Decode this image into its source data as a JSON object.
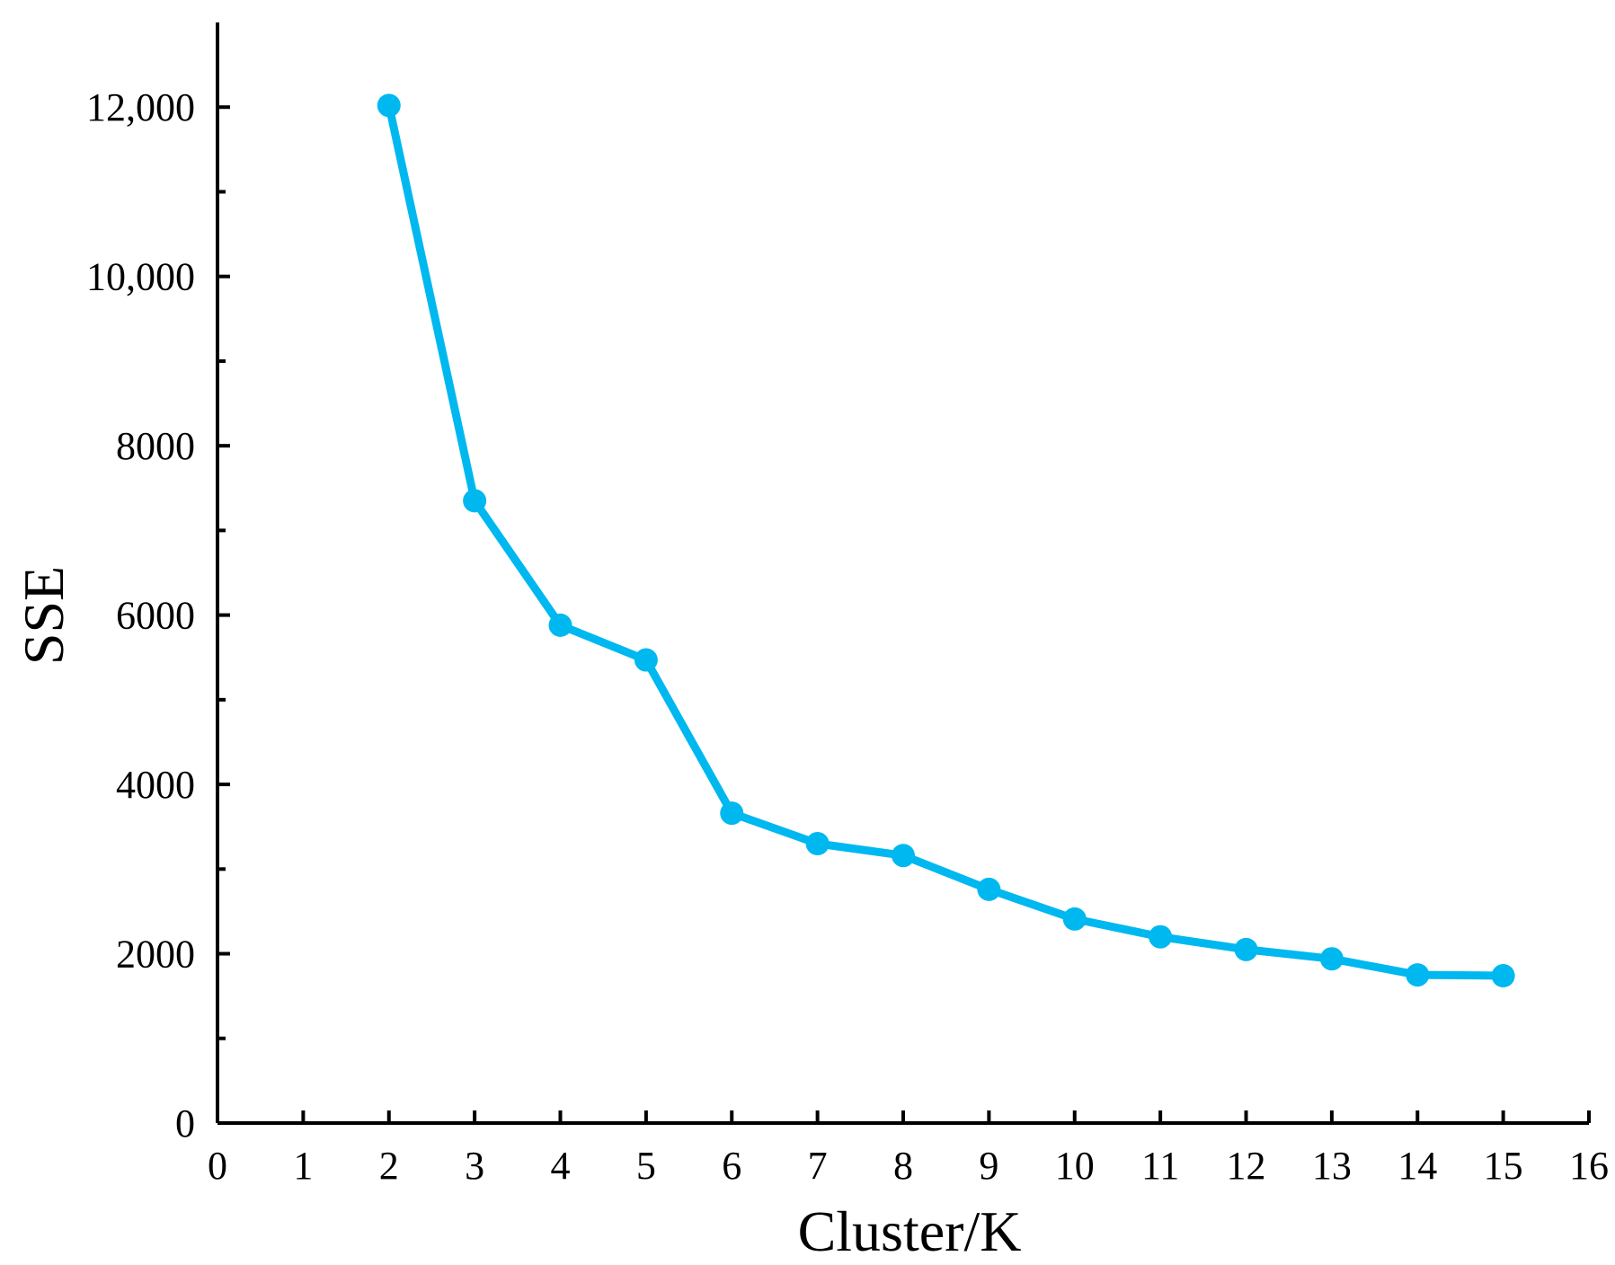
{
  "chart_data": {
    "type": "line",
    "title": "",
    "xlabel": "Cluster/K",
    "ylabel": "SSE",
    "xlim": [
      0,
      16
    ],
    "ylim": [
      0,
      13000
    ],
    "x_ticks": [
      0,
      1,
      2,
      3,
      4,
      5,
      6,
      7,
      8,
      9,
      10,
      11,
      12,
      13,
      14,
      15,
      16
    ],
    "x_tick_labels": [
      "0",
      "1",
      "2",
      "3",
      "4",
      "5",
      "6",
      "7",
      "8",
      "9",
      "10",
      "11",
      "12",
      "13",
      "14",
      "15",
      "16"
    ],
    "y_ticks": [
      0,
      2000,
      4000,
      6000,
      8000,
      10000,
      12000
    ],
    "y_tick_labels": [
      "0",
      "2000",
      "4000",
      "6000",
      "8000",
      "10,000",
      "12,000"
    ],
    "y_minor_ticks": [
      1000,
      3000,
      5000,
      7000,
      9000,
      11000
    ],
    "grid": false,
    "legend": "none",
    "series": [
      {
        "color": "#00b8f0",
        "x": [
          2,
          3,
          4,
          5,
          6,
          7,
          8,
          9,
          10,
          11,
          12,
          13,
          14,
          15
        ],
        "values": [
          12020,
          7350,
          5880,
          5470,
          3660,
          3300,
          3160,
          2760,
          2410,
          2200,
          2050,
          1940,
          1750,
          1740
        ]
      }
    ]
  }
}
